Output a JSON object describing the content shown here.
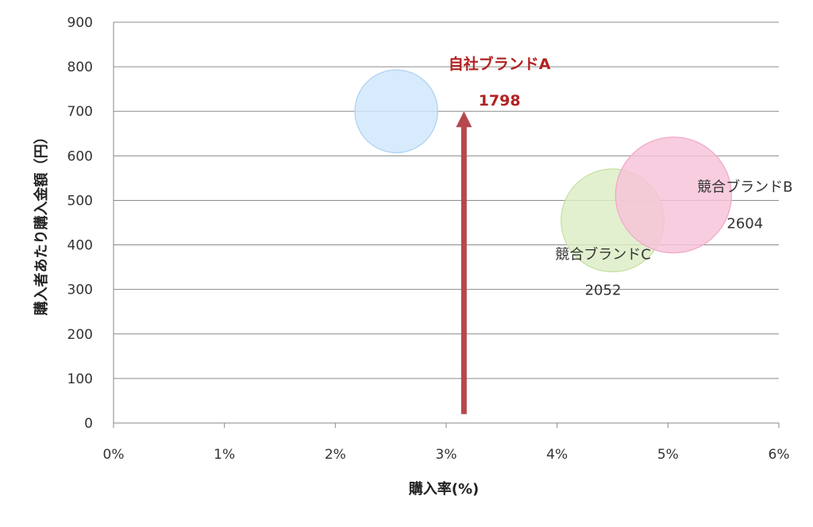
{
  "chart_data": {
    "type": "bubble",
    "xlabel": "購入率(%)",
    "ylabel": "購入者あたり購入金額（円）",
    "xlim": [
      0,
      6
    ],
    "ylim": [
      0,
      900
    ],
    "x_ticks": [
      "0%",
      "1%",
      "2%",
      "3%",
      "4%",
      "5%",
      "6%"
    ],
    "x_tick_values": [
      0,
      1,
      2,
      3,
      4,
      5,
      6
    ],
    "y_ticks": [
      "0",
      "100",
      "200",
      "300",
      "400",
      "500",
      "600",
      "700",
      "800",
      "900"
    ],
    "y_tick_values": [
      0,
      100,
      200,
      300,
      400,
      500,
      600,
      700,
      800,
      900
    ],
    "grid": "horizontal",
    "series": [
      {
        "name": "自社ブランドA",
        "label": "自社ブランドA",
        "x": 2.55,
        "y": 700,
        "size": 1798,
        "value_label": "1798",
        "fill": "#cfe6fb",
        "stroke": "#a9d0f3",
        "label_color": "#b22222"
      },
      {
        "name": "競合ブランドC",
        "label": "競合ブランドC",
        "x": 4.5,
        "y": 455,
        "size": 2052,
        "value_label": "2052",
        "fill": "#dcedc4",
        "stroke": "#c4df9e",
        "label_color": "#333333"
      },
      {
        "name": "競合ブランドB",
        "label": "競合ブランドB",
        "x": 5.05,
        "y": 512,
        "size": 2604,
        "value_label": "2604",
        "fill": "#f6c2d8",
        "stroke": "#f0a6c6",
        "label_color": "#333333"
      }
    ],
    "annotations": [
      {
        "type": "arrow",
        "x": 3.16,
        "y_from": 20,
        "y_to": 700,
        "color": "#b5484c"
      }
    ]
  }
}
